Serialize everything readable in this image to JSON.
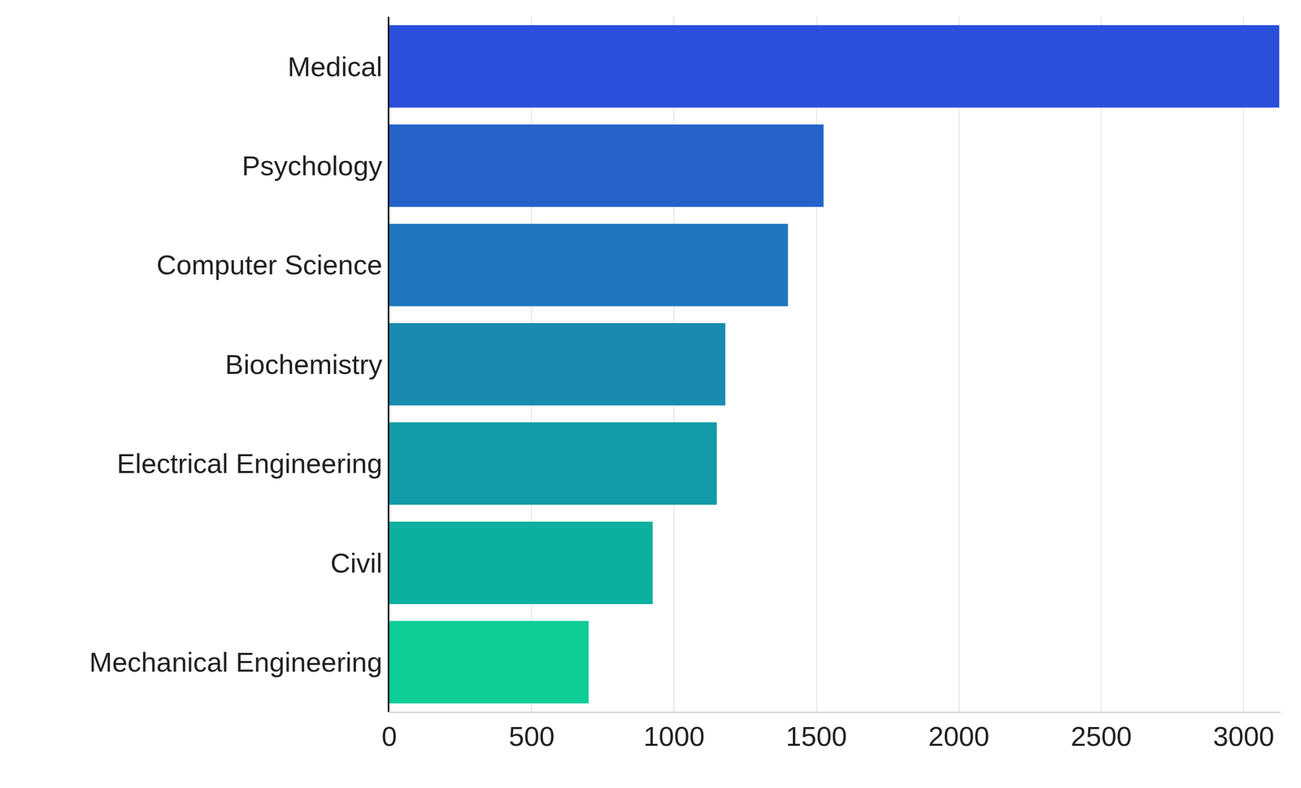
{
  "chart_data": {
    "type": "bar",
    "orientation": "horizontal",
    "categories": [
      "Medical",
      "Psychology",
      "Computer Science",
      "Biochemistry",
      "Electrical Engineering",
      "Civil",
      "Mechanical Engineering"
    ],
    "values": [
      3125,
      1525,
      1400,
      1180,
      1150,
      925,
      700
    ],
    "colors": [
      "#2a4fdb",
      "#2563c9",
      "#1f78bd",
      "#1a8bb0",
      "#129ba8",
      "#0db09e",
      "#0ccd96"
    ],
    "xlim": [
      0,
      3130
    ],
    "xticks": [
      0,
      500,
      1000,
      1500,
      2000,
      2500,
      3000
    ],
    "grid": true
  }
}
